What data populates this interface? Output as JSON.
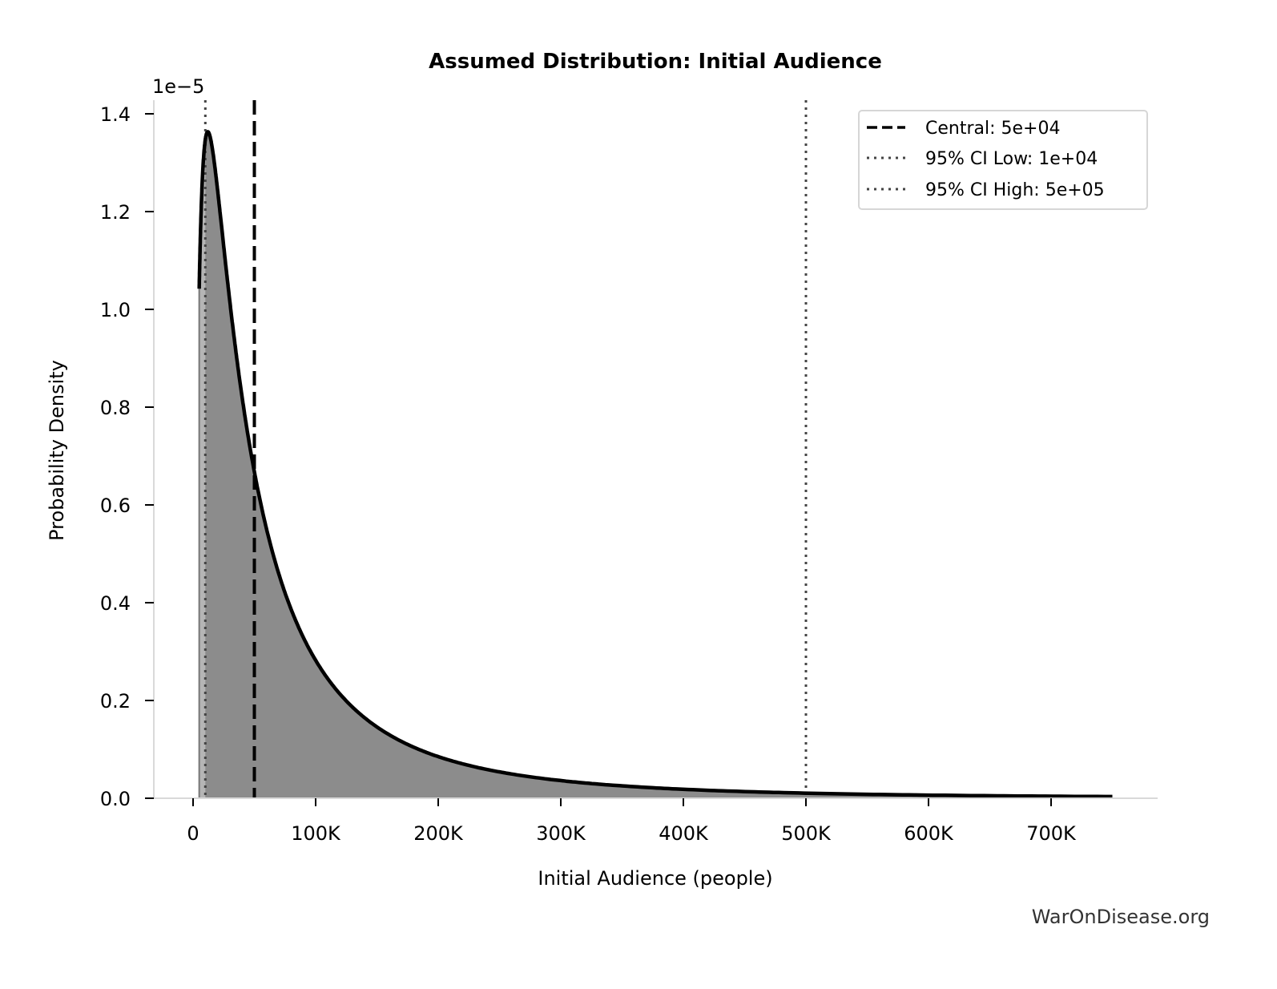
{
  "chart_data": {
    "type": "area",
    "title": "Assumed Distribution: Initial Audience",
    "xlabel": "Initial Audience (people)",
    "ylabel": "Probability Density",
    "y_offset_label": "1e−5",
    "xlim": [
      -35000,
      785000
    ],
    "ylim": [
      0,
      1.42
    ],
    "y_scale_factor": 1e-05,
    "x_ticks": [
      0,
      100000,
      200000,
      300000,
      400000,
      500000,
      600000,
      700000
    ],
    "x_tick_labels": [
      "0",
      "100K",
      "200K",
      "300K",
      "400K",
      "500K",
      "600K",
      "700K"
    ],
    "y_ticks": [
      0,
      0.2,
      0.4,
      0.6,
      0.8,
      1.0,
      1.2,
      1.4
    ],
    "y_tick_labels": [
      "0.0",
      "0.2",
      "0.4",
      "0.6",
      "0.8",
      "1.0",
      "1.2",
      "1.4"
    ],
    "grid": false,
    "legend_position": "top-right",
    "series": [
      {
        "x": [
          5000,
          8000,
          12000,
          16000,
          20000,
          30000,
          40000,
          50000,
          70000,
          100000,
          150000,
          200000,
          300000,
          400000,
          500000,
          600000,
          750000
        ],
        "y": [
          1.05,
          1.29,
          1.37,
          1.32,
          1.24,
          1.01,
          0.817,
          0.665,
          0.457,
          0.281,
          0.146,
          0.085,
          0.036,
          0.0185,
          0.0106,
          0.0065,
          0.0035
        ],
        "color": "#000000",
        "fill": "#8c8c8c"
      }
    ],
    "reference_lines": [
      {
        "name": "Central: 5e+04",
        "x": 50000,
        "style": "dashed",
        "color": "#000000"
      },
      {
        "name": "95% CI Low: 1e+04",
        "x": 10000,
        "style": "dotted",
        "color": "#444444"
      },
      {
        "name": "95% CI High: 5e+05",
        "x": 500000,
        "style": "dotted",
        "color": "#444444"
      }
    ]
  },
  "watermark": "WarOnDisease.org"
}
